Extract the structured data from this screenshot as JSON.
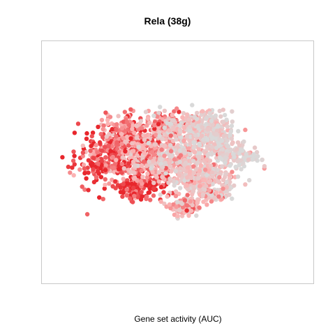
{
  "chart_data": {
    "type": "scatter",
    "title": "Rela (38g)",
    "xlabel": "Gene set activity (AUC)",
    "ylabel": "",
    "grid": false,
    "legend": "none",
    "axes_ticks": false,
    "color_scale": {
      "low": "#d9d9d9",
      "mid": "#fbb4b4",
      "high": "#e8262c"
    },
    "clusters": [
      {
        "name": "",
        "center": [
          -0.55,
          0.02
        ],
        "spread": [
          0.12,
          0.1
        ],
        "n": 260,
        "activity": 0.85
      },
      {
        "name": "",
        "center": [
          -0.42,
          0.25
        ],
        "spread": [
          0.1,
          0.08
        ],
        "n": 200,
        "activity": 0.75
      },
      {
        "name": "",
        "center": [
          -0.3,
          -0.2
        ],
        "spread": [
          0.1,
          0.07
        ],
        "n": 170,
        "activity": 0.9
      },
      {
        "name": "",
        "center": [
          -0.25,
          0.05
        ],
        "spread": [
          0.09,
          0.1
        ],
        "n": 180,
        "activity": 0.6
      },
      {
        "name": "",
        "center": [
          -0.1,
          0.3
        ],
        "spread": [
          0.09,
          0.07
        ],
        "n": 170,
        "activity": 0.55
      },
      {
        "name": "",
        "center": [
          0.05,
          0.05
        ],
        "spread": [
          0.14,
          0.12
        ],
        "n": 360,
        "activity": 0.3
      },
      {
        "name": "",
        "center": [
          0.18,
          0.3
        ],
        "spread": [
          0.12,
          0.07
        ],
        "n": 220,
        "activity": 0.2
      },
      {
        "name": "",
        "center": [
          0.3,
          0.18
        ],
        "spread": [
          0.08,
          0.1
        ],
        "n": 160,
        "activity": 0.12
      },
      {
        "name": "",
        "center": [
          0.2,
          -0.15
        ],
        "spread": [
          0.13,
          0.07
        ],
        "n": 230,
        "activity": 0.28
      },
      {
        "name": "",
        "center": [
          0.05,
          -0.38
        ],
        "spread": [
          0.06,
          0.05
        ],
        "n": 110,
        "activity": 0.45
      },
      {
        "name": "",
        "center": [
          0.48,
          0.05
        ],
        "spread": [
          0.08,
          0.05
        ],
        "n": 110,
        "activity": 0.12
      },
      {
        "name": "",
        "center": [
          0.25,
          -0.28
        ],
        "spread": [
          0.07,
          0.03
        ],
        "n": 60,
        "activity": 0.35
      }
    ]
  }
}
